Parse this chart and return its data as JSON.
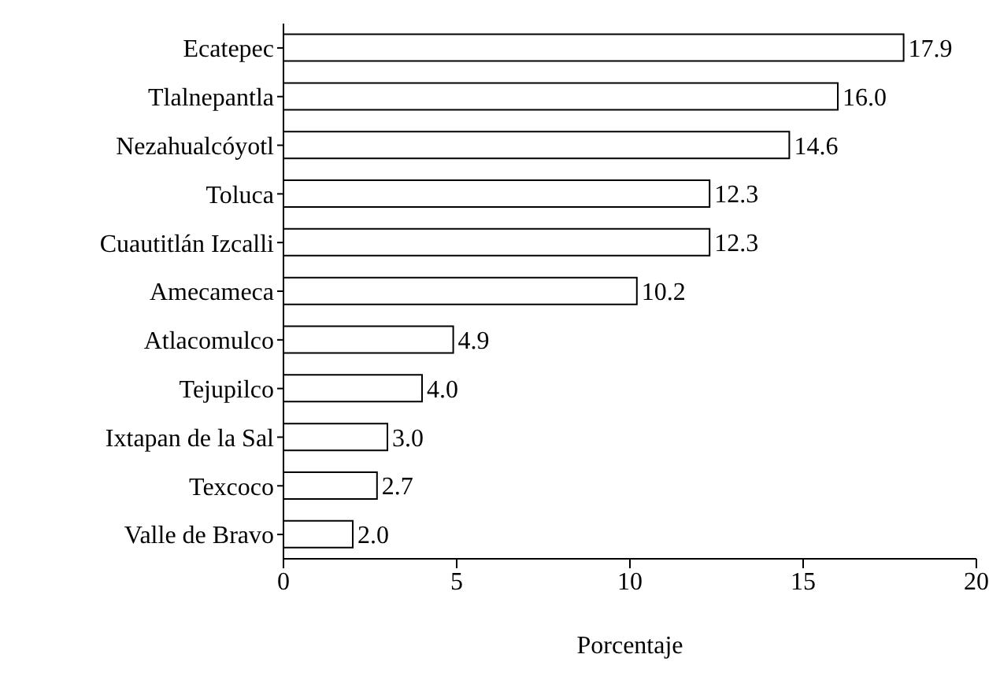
{
  "chart_data": {
    "type": "bar",
    "orientation": "horizontal",
    "xlabel": "Porcentaje",
    "categories": [
      "Ecatepec",
      "Tlalnepantla",
      "Nezahualcóyotl",
      "Toluca",
      "Cuautitlán Izcalli",
      "Amecameca",
      "Atlacomulco",
      "Tejupilco",
      "Ixtapan de la Sal",
      "Texcoco",
      "Valle de Bravo"
    ],
    "values": [
      17.9,
      16.0,
      14.6,
      12.3,
      12.3,
      10.2,
      4.9,
      4.0,
      3.0,
      2.7,
      2.0
    ],
    "value_labels": [
      "17.9",
      "16.0",
      "14.6",
      "12.3",
      "12.3",
      "10.2",
      "4.9",
      "4.0",
      "3.0",
      "2.7",
      "2.0"
    ],
    "color": "#ffffff",
    "xlim": [
      0,
      20
    ],
    "xticks": [
      0,
      5,
      10,
      15,
      20
    ],
    "grid": false,
    "legend": false
  }
}
